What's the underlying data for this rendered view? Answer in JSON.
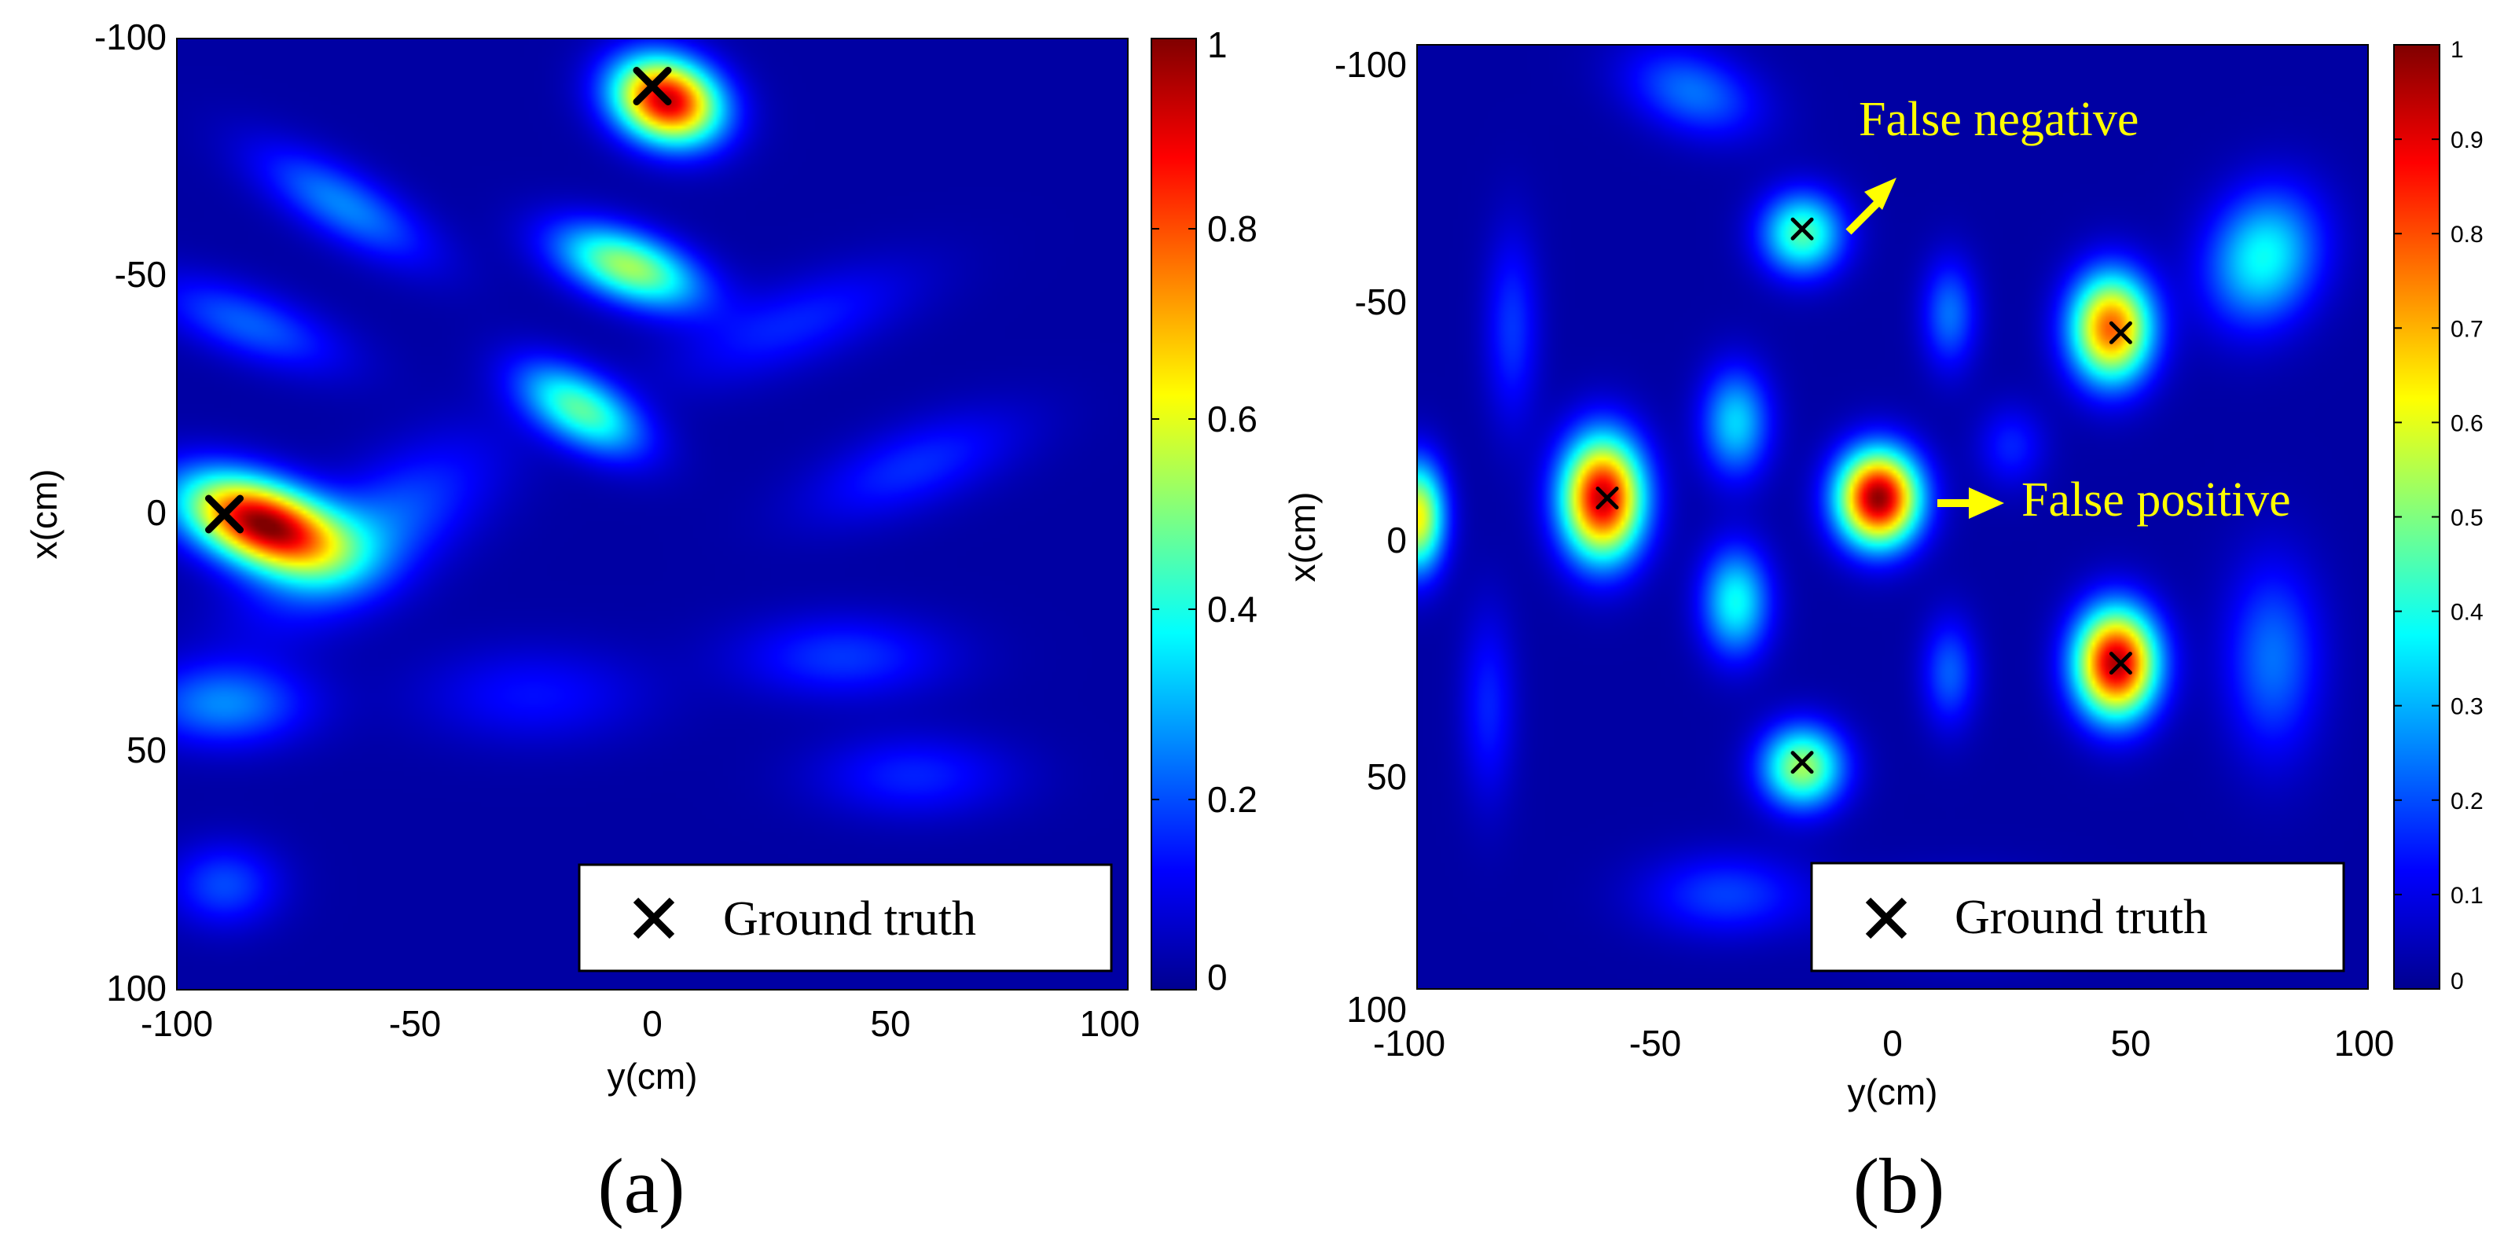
{
  "chart_data": [
    {
      "type": "heatmap",
      "panel_label": "(a)",
      "xlabel": "y(cm)",
      "ylabel": "x(cm)",
      "xlim": [
        -100,
        100
      ],
      "ylim": [
        -100,
        100
      ],
      "x_ticks": [
        "-100",
        "-50",
        "0",
        "50",
        "100"
      ],
      "y_ticks": [
        "-100",
        "-50",
        "0",
        "50",
        "100"
      ],
      "colorbar": {
        "min": 0,
        "max": 1,
        "ticks": [
          "0",
          "0.2",
          "0.4",
          "0.6",
          "0.8",
          "1"
        ]
      },
      "ground_truth": [
        {
          "y": -90,
          "x": 0
        },
        {
          "y": 0,
          "x": -90
        }
      ],
      "blobs": [
        {
          "y": -82,
          "x": 2,
          "value": 0.95,
          "sy": 12,
          "sx": 6,
          "rot": 20
        },
        {
          "y": 3,
          "x": -87,
          "value": 0.9,
          "sy": 8,
          "sx": 6,
          "rot": 20
        },
        {
          "y": -5,
          "x": -52,
          "value": 0.5,
          "sy": 11,
          "sx": 5,
          "rot": 20
        },
        {
          "y": -15,
          "x": -22,
          "value": 0.42,
          "sy": 10,
          "sx": 5,
          "rot": 30
        },
        {
          "y": -65,
          "x": -65,
          "value": 0.22,
          "sy": 14,
          "sx": 5,
          "rot": 30
        },
        {
          "y": -85,
          "x": -40,
          "value": 0.18,
          "sy": 14,
          "sx": 5,
          "rot": 20
        },
        {
          "y": -60,
          "x": 5,
          "value": 0.2,
          "sy": 8,
          "sx": 20,
          "rot": 55
        },
        {
          "y": -90,
          "x": 40,
          "value": 0.22,
          "sy": 12,
          "sx": 6,
          "rot": 0
        },
        {
          "y": 40,
          "x": 30,
          "value": 0.14,
          "sy": 15,
          "sx": 6,
          "rot": 0
        },
        {
          "y": 55,
          "x": -10,
          "value": 0.13,
          "sy": 16,
          "sx": 6,
          "rot": -20
        },
        {
          "y": 30,
          "x": -40,
          "value": 0.12,
          "sy": 18,
          "sx": 6,
          "rot": -20
        },
        {
          "y": -90,
          "x": 78,
          "value": 0.16,
          "sy": 8,
          "sx": 6,
          "rot": 0
        },
        {
          "y": 55,
          "x": 55,
          "value": 0.12,
          "sy": 14,
          "sx": 6,
          "rot": 0
        },
        {
          "y": -25,
          "x": 38,
          "value": 0.1,
          "sy": 16,
          "sx": 7,
          "rot": 0
        }
      ],
      "legend": {
        "symbol": "×",
        "label": "Ground truth"
      }
    },
    {
      "type": "heatmap",
      "panel_label": "(b)",
      "xlabel": "y(cm)",
      "ylabel": "x(cm)",
      "xlim": [
        -100,
        100
      ],
      "ylim": [
        -100,
        100
      ],
      "x_ticks": [
        "-100",
        "-50",
        "0",
        "50",
        "100"
      ],
      "y_ticks": [
        "-100",
        "-50",
        "0",
        "50",
        "100"
      ],
      "colorbar": {
        "min": 0,
        "max": 1,
        "ticks": [
          "0",
          "0.1",
          "0.2",
          "0.3",
          "0.4",
          "0.5",
          "0.6",
          "0.7",
          "0.8",
          "0.9",
          "1"
        ]
      },
      "ground_truth": [
        {
          "y": -19,
          "x": -61
        },
        {
          "y": 48,
          "x": -39
        },
        {
          "y": -60,
          "x": -4
        },
        {
          "y": 48,
          "x": 31
        },
        {
          "y": -19,
          "x": 52
        }
      ],
      "blobs": [
        {
          "y": -3,
          "x": -4,
          "value": 0.95,
          "sy": 6,
          "sx": 7,
          "rot": 0
        },
        {
          "y": -61,
          "x": -4,
          "value": 0.9,
          "sy": 6,
          "sx": 9,
          "rot": 0
        },
        {
          "y": 47,
          "x": 31,
          "value": 0.92,
          "sy": 6,
          "sx": 8,
          "rot": 0
        },
        {
          "y": 46,
          "x": -40,
          "value": 0.75,
          "sy": 6,
          "sx": 8,
          "rot": 0
        },
        {
          "y": -19,
          "x": -60,
          "value": 0.42,
          "sy": 6,
          "sx": 6,
          "rot": 0
        },
        {
          "y": -19,
          "x": 53,
          "value": 0.5,
          "sy": 6,
          "sx": 6,
          "rot": 0
        },
        {
          "y": -100,
          "x": 0,
          "value": 0.6,
          "sy": 4,
          "sx": 8,
          "rot": 0
        },
        {
          "y": -33,
          "x": -20,
          "value": 0.3,
          "sy": 5,
          "sx": 8,
          "rot": 0
        },
        {
          "y": -33,
          "x": 18,
          "value": 0.35,
          "sy": 5,
          "sx": 8,
          "rot": 0
        },
        {
          "y": 78,
          "x": -55,
          "value": 0.35,
          "sy": 8,
          "sx": 10,
          "rot": 20
        },
        {
          "y": 12,
          "x": -43,
          "value": 0.2,
          "sy": 4,
          "sx": 8,
          "rot": 0
        },
        {
          "y": 12,
          "x": 33,
          "value": 0.18,
          "sy": 4,
          "sx": 8,
          "rot": 0
        },
        {
          "y": 80,
          "x": 30,
          "value": 0.2,
          "sy": 7,
          "sx": 14,
          "rot": 0
        },
        {
          "y": 25,
          "x": -15,
          "value": 0.12,
          "sy": 5,
          "sx": 6,
          "rot": 0
        },
        {
          "y": -42,
          "x": -90,
          "value": 0.2,
          "sy": 10,
          "sx": 6,
          "rot": 20
        },
        {
          "y": -80,
          "x": -40,
          "value": 0.14,
          "sy": 4,
          "sx": 14,
          "rot": 0
        },
        {
          "y": -85,
          "x": 40,
          "value": 0.12,
          "sy": 4,
          "sx": 14,
          "rot": 0
        },
        {
          "y": -35,
          "x": 80,
          "value": 0.15,
          "sy": 12,
          "sx": 6,
          "rot": 0
        },
        {
          "y": 15,
          "x": 85,
          "value": 0.12,
          "sy": 14,
          "sx": 6,
          "rot": 0
        }
      ],
      "legend": {
        "symbol": "×",
        "label": "Ground truth"
      },
      "annotations": [
        {
          "text": "False negative",
          "color": "#ffff00"
        },
        {
          "text": "False positive",
          "color": "#ffff00"
        }
      ]
    }
  ]
}
